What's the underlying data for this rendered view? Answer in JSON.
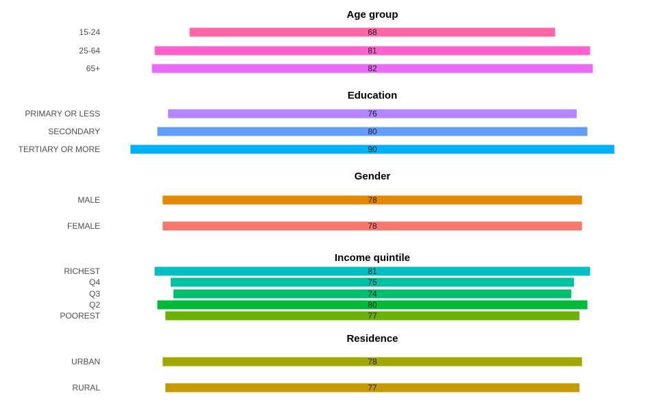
{
  "chart_data": [
    {
      "type": "bar",
      "orientation": "horizontal-centered",
      "title": "Age group",
      "categories": [
        "15-24",
        "25-64",
        "65+"
      ],
      "values": [
        68,
        81,
        82
      ],
      "colors": [
        "#ff66a8",
        "#ff61cc",
        "#e76bf3"
      ]
    },
    {
      "type": "bar",
      "orientation": "horizontal-centered",
      "title": "Education",
      "categories": [
        "PRIMARY OR LESS",
        "SECONDARY",
        "TERTIARY OR MORE"
      ],
      "values": [
        76,
        80,
        90
      ],
      "colors": [
        "#b385ff",
        "#619cff",
        "#00b0f6"
      ]
    },
    {
      "type": "bar",
      "orientation": "horizontal-centered",
      "title": "Gender",
      "categories": [
        "MALE",
        "FEMALE"
      ],
      "values": [
        78,
        78
      ],
      "colors": [
        "#e58700",
        "#f8766d"
      ]
    },
    {
      "type": "bar",
      "orientation": "horizontal-centered",
      "title": "Income quintile",
      "categories": [
        "RICHEST",
        "Q4",
        "Q3",
        "Q2",
        "POOREST"
      ],
      "values": [
        81,
        75,
        74,
        80,
        77
      ],
      "colors": [
        "#00bfc4",
        "#00c1a3",
        "#00be70",
        "#00ba38",
        "#6bb100"
      ]
    },
    {
      "type": "bar",
      "orientation": "horizontal-centered",
      "title": "Residence",
      "categories": [
        "URBAN",
        "RURAL"
      ],
      "values": [
        78,
        77
      ],
      "colors": [
        "#a3a500",
        "#c49a00"
      ]
    }
  ]
}
